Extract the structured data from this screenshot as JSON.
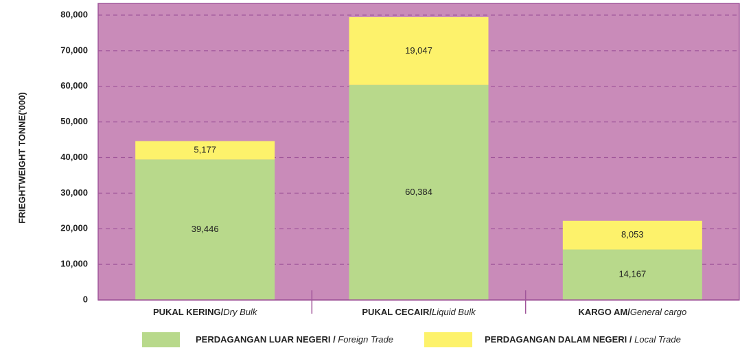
{
  "chart_data": {
    "type": "stacked_bar",
    "y_label": "FRIEGHTWEIGHT TONNE('000)",
    "categories": [
      "PUKAL KERING/Dry Bulk",
      "PUKAL CECAIR/Liquid Bulk",
      "KARGO AM/General cargo"
    ],
    "series": [
      {
        "name": "PERDAGANGAN LUAR NEGERI / Foreign Trade",
        "color": "#b8d98b",
        "values": [
          39446,
          60384,
          14167
        ],
        "value_labels": [
          "39,446",
          "60,384",
          "14,167"
        ]
      },
      {
        "name": "PERDAGANGAN DALAM NEGERI / Local Trade",
        "color": "#fdf26b",
        "values": [
          5177,
          19047,
          8053
        ],
        "value_labels": [
          "5,177",
          "19,047",
          "8,053"
        ]
      }
    ],
    "ylim": [
      0,
      80000
    ],
    "yticks": [
      {
        "value": 0,
        "label": "0"
      },
      {
        "value": 10000,
        "label": "10,000"
      },
      {
        "value": 20000,
        "label": "20,000"
      },
      {
        "value": 30000,
        "label": "30,000"
      },
      {
        "value": 40000,
        "label": "40,000"
      },
      {
        "value": 50000,
        "label": "50,000"
      },
      {
        "value": 60000,
        "label": "60,000"
      },
      {
        "value": 70000,
        "label": "70,000"
      },
      {
        "value": 80000,
        "label": "80,000"
      }
    ],
    "grid": true,
    "background": "#c98bb9"
  }
}
